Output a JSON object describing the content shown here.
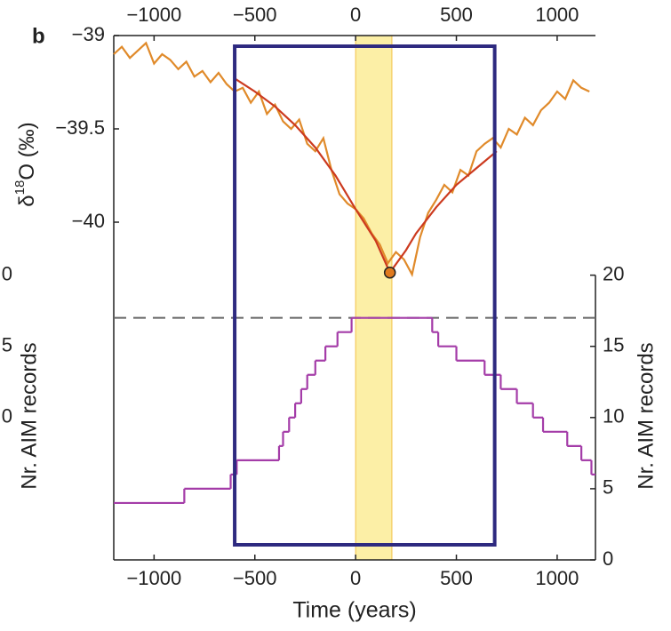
{
  "chart_data": [
    {
      "type": "line",
      "panel_label": "b",
      "xlim": [
        -1200,
        1190
      ],
      "xticks": [
        {
          "value": -1000,
          "label": "−1000"
        },
        {
          "value": -500,
          "label": "−500"
        },
        0,
        500,
        1000
      ],
      "ylim": [
        -40.35,
        -39
      ],
      "yticks": [
        {
          "value": -39,
          "label": "−39"
        },
        {
          "value": -39.5,
          "label": "−39.5"
        },
        {
          "value": -40,
          "label": "−40"
        }
      ],
      "ylabel": [
        "δ",
        "18",
        "O (‰)"
      ],
      "x": [
        -1200,
        -1160,
        -1120,
        -1080,
        -1040,
        -1000,
        -960,
        -920,
        -880,
        -840,
        -800,
        -760,
        -720,
        -680,
        -640,
        -600,
        -560,
        -520,
        -480,
        -440,
        -400,
        -360,
        -320,
        -280,
        -240,
        -200,
        -160,
        -120,
        -80,
        -40,
        0,
        40,
        80,
        120,
        160,
        200,
        240,
        280,
        320,
        360,
        400,
        440,
        480,
        520,
        560,
        600,
        640,
        680,
        720,
        760,
        800,
        840,
        880,
        920,
        960,
        1000,
        1040,
        1080,
        1120,
        1160
      ],
      "series": [
        {
          "color": "#e08a2a",
          "values": [
            -39.1,
            -39.06,
            -39.12,
            -39.08,
            -39.04,
            -39.15,
            -39.1,
            -39.13,
            -39.18,
            -39.14,
            -39.22,
            -39.19,
            -39.25,
            -39.2,
            -39.26,
            -39.3,
            -39.28,
            -39.36,
            -39.3,
            -39.42,
            -39.37,
            -39.46,
            -39.5,
            -39.45,
            -39.58,
            -39.62,
            -39.55,
            -39.72,
            -39.85,
            -39.9,
            -39.93,
            -39.98,
            -40.06,
            -40.12,
            -40.22,
            -40.16,
            -40.2,
            -40.28,
            -40.08,
            -39.95,
            -39.88,
            -39.8,
            -39.84,
            -39.72,
            -39.75,
            -39.62,
            -39.58,
            -39.55,
            -39.6,
            -39.5,
            -39.53,
            -39.44,
            -39.48,
            -39.4,
            -39.36,
            -39.3,
            -39.34,
            -39.24,
            -39.28,
            -39.3
          ]
        }
      ],
      "fit": {
        "color": "#cc3a1f",
        "x": [
          -600,
          -500,
          -400,
          -300,
          -200,
          -100,
          0,
          100,
          170,
          250,
          300,
          400,
          500,
          600,
          700
        ],
        "values": [
          -39.23,
          -39.3,
          -39.38,
          -39.48,
          -39.6,
          -39.75,
          -39.93,
          -40.1,
          -40.27,
          -40.15,
          -40.06,
          -39.92,
          -39.8,
          -39.71,
          -39.62
        ]
      },
      "marker": {
        "x": 170,
        "y": -40.27,
        "color": "#e07a1f"
      },
      "shaded_band": [
        0,
        180
      ],
      "window": [
        -600,
        690
      ]
    },
    {
      "type": "step",
      "xlim": [
        -1200,
        1190
      ],
      "xticks": [
        {
          "value": -1000,
          "label": "−1000"
        },
        {
          "value": -500,
          "label": "−500"
        },
        0,
        500,
        1000
      ],
      "xlabel": "Time (years)",
      "ylim": [
        0,
        20.6
      ],
      "yticks": [
        0,
        5,
        10,
        15,
        20
      ],
      "left_yticks": [
        {
          "value": 20,
          "label": "0"
        },
        {
          "value": 15,
          "label": "5"
        },
        {
          "value": 10,
          "label": "0"
        }
      ],
      "ylabel_left": "Nr. AIM records",
      "ylabel_right": "Nr. AIM records",
      "color": "#a43ca8",
      "x": [
        -1200,
        -850,
        -620,
        -590,
        -380,
        -360,
        -330,
        -300,
        -270,
        -240,
        -200,
        -150,
        -90,
        -20,
        380,
        410,
        500,
        640,
        720,
        800,
        880,
        930,
        1050,
        1120,
        1170
      ],
      "values": [
        4,
        5,
        6,
        7,
        8,
        9,
        10,
        11,
        12,
        13,
        14,
        15,
        16,
        17,
        16,
        15,
        14,
        13,
        12,
        11,
        10,
        9,
        8,
        7,
        6
      ],
      "reference_line": 17
    }
  ]
}
